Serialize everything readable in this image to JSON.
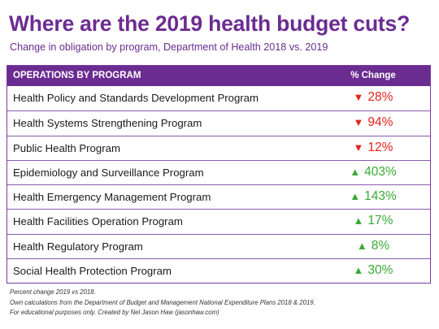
{
  "title": "Where are the 2019 health budget cuts?",
  "subtitle": "Change in obligation by program, Department of Health 2018 vs. 2019",
  "colors": {
    "title": "#6b2c91",
    "header_bg": "#6b2c91",
    "decrease": "#e2231a",
    "increase": "#3aaa35"
  },
  "chart_data": {
    "type": "table",
    "columns": [
      "OPERATIONS BY PROGRAM",
      "% Change"
    ],
    "rows": [
      {
        "program": "Health Policy and Standards Development Program",
        "direction": "down",
        "arrow": "▼",
        "change": "28%",
        "value": -28
      },
      {
        "program": "Health Systems Strengthening Program",
        "direction": "down",
        "arrow": "▼",
        "change": "94%",
        "value": -94
      },
      {
        "program": "Public Health Program",
        "direction": "down",
        "arrow": "▼",
        "change": "12%",
        "value": -12
      },
      {
        "program": "Epidemiology and Surveillance Program",
        "direction": "up",
        "arrow": "▲",
        "change": "403%",
        "value": 403
      },
      {
        "program": "Health Emergency Management Program",
        "direction": "up",
        "arrow": "▲",
        "change": "143%",
        "value": 143
      },
      {
        "program": "Health Facilities Operation Program",
        "direction": "up",
        "arrow": "▲",
        "change": "17%",
        "value": 17
      },
      {
        "program": "Health Regulatory Program",
        "direction": "up",
        "arrow": "▲",
        "change": "8%",
        "value": 8
      },
      {
        "program": "Social Health Protection Program",
        "direction": "up",
        "arrow": "▲",
        "change": "30%",
        "value": 30
      }
    ]
  },
  "notes": [
    "Percent change 2019 vs 2018.",
    "Own calculations from the Department of Budget and Management National Expenditure Plans 2018 & 2019.",
    "For educational purposes only. Created by Nel Jason Haw (jasonhaw.com)"
  ]
}
